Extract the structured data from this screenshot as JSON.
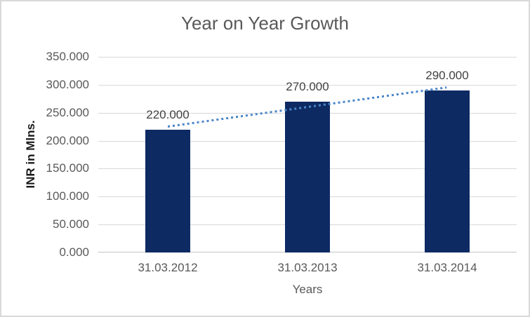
{
  "chart_data": {
    "type": "bar",
    "title": "Year on Year Growth",
    "xlabel": "Years",
    "ylabel": "INR in Mlns.",
    "categories": [
      "31.03.2012",
      "31.03.2013",
      "31.03.2014"
    ],
    "values": [
      220,
      270,
      290
    ],
    "data_labels": [
      "220.000",
      "270.000",
      "290.000"
    ],
    "ylim": [
      0,
      350
    ],
    "y_tick_step": 50,
    "y_tick_labels": [
      "0.000",
      "50.000",
      "100.000",
      "150.000",
      "200.000",
      "250.000",
      "300.000",
      "350.000"
    ],
    "grid": true,
    "legend": "none",
    "trendline": {
      "type": "linear",
      "style": "dotted"
    },
    "colors": {
      "bar": "#0d2a63",
      "trendline": "#4a86c8",
      "title": "#595959",
      "tick_labels": "#595959",
      "data_labels": "#404040",
      "gridline": "#d9d9d9",
      "axis_line": "#c3c3c3",
      "y_axis_title": "#1a1a1a",
      "border": "#d9d9d9",
      "background": "#ffffff"
    }
  }
}
